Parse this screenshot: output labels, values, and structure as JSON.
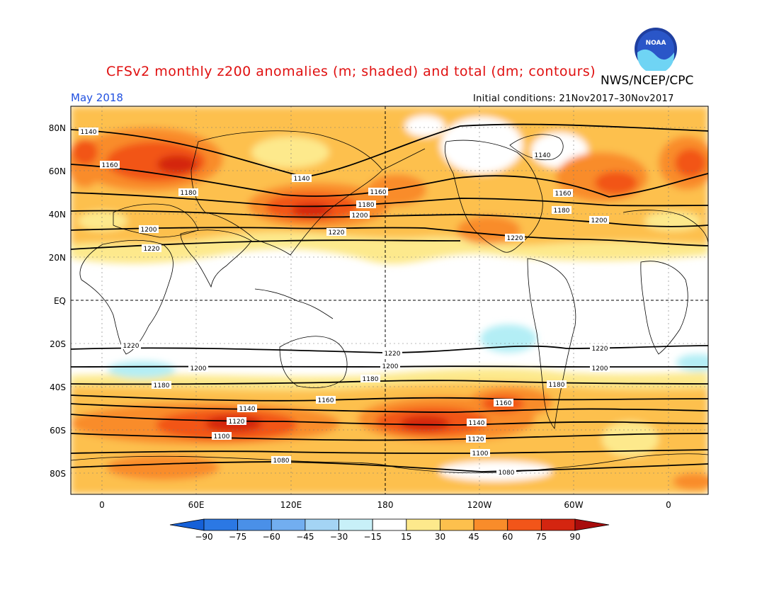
{
  "title": "CFSv2 monthly z200 anomalies (m; shaded) and total (dm; contours)",
  "agency": "NWS/NCEP/CPC",
  "logo_text": "NOAA",
  "valid_month": "May 2018",
  "initial_conditions": "Initial conditions: 21Nov2017–30Nov2017",
  "colors": {
    "title": "#e01010",
    "month": "#2050e0",
    "white": "#ffffff",
    "c15": "#fde98c",
    "c30": "#fdc04d",
    "c45": "#f98c2a",
    "c60": "#f25519",
    "c75": "#d42510",
    "cn15": "#b3eef5",
    "coast": "#000000"
  },
  "map": {
    "lat_labels": [
      "80N",
      "60N",
      "40N",
      "20N",
      "EQ",
      "20S",
      "40S",
      "60S",
      "80S"
    ],
    "lon_labels": [
      "0",
      "60E",
      "120E",
      "180",
      "120W",
      "60W",
      "0"
    ],
    "contour_labels": [
      "1140",
      "1160",
      "1180",
      "1200",
      "1220",
      "1220",
      "1200",
      "1180",
      "1160",
      "1140",
      "1120",
      "1100",
      "1080"
    ]
  },
  "colorbar": {
    "labels": [
      "−90",
      "−75",
      "−60",
      "−45",
      "−30",
      "−15",
      "15",
      "30",
      "45",
      "60",
      "75",
      "90"
    ],
    "colors": [
      "#1560d8",
      "#2b78e4",
      "#4a90e8",
      "#72aef0",
      "#a4d4f4",
      "#c8f0f8",
      "#ffffff",
      "#fde98c",
      "#fdc04d",
      "#f98c2a",
      "#f25519",
      "#d42510",
      "#a80c0c"
    ]
  }
}
